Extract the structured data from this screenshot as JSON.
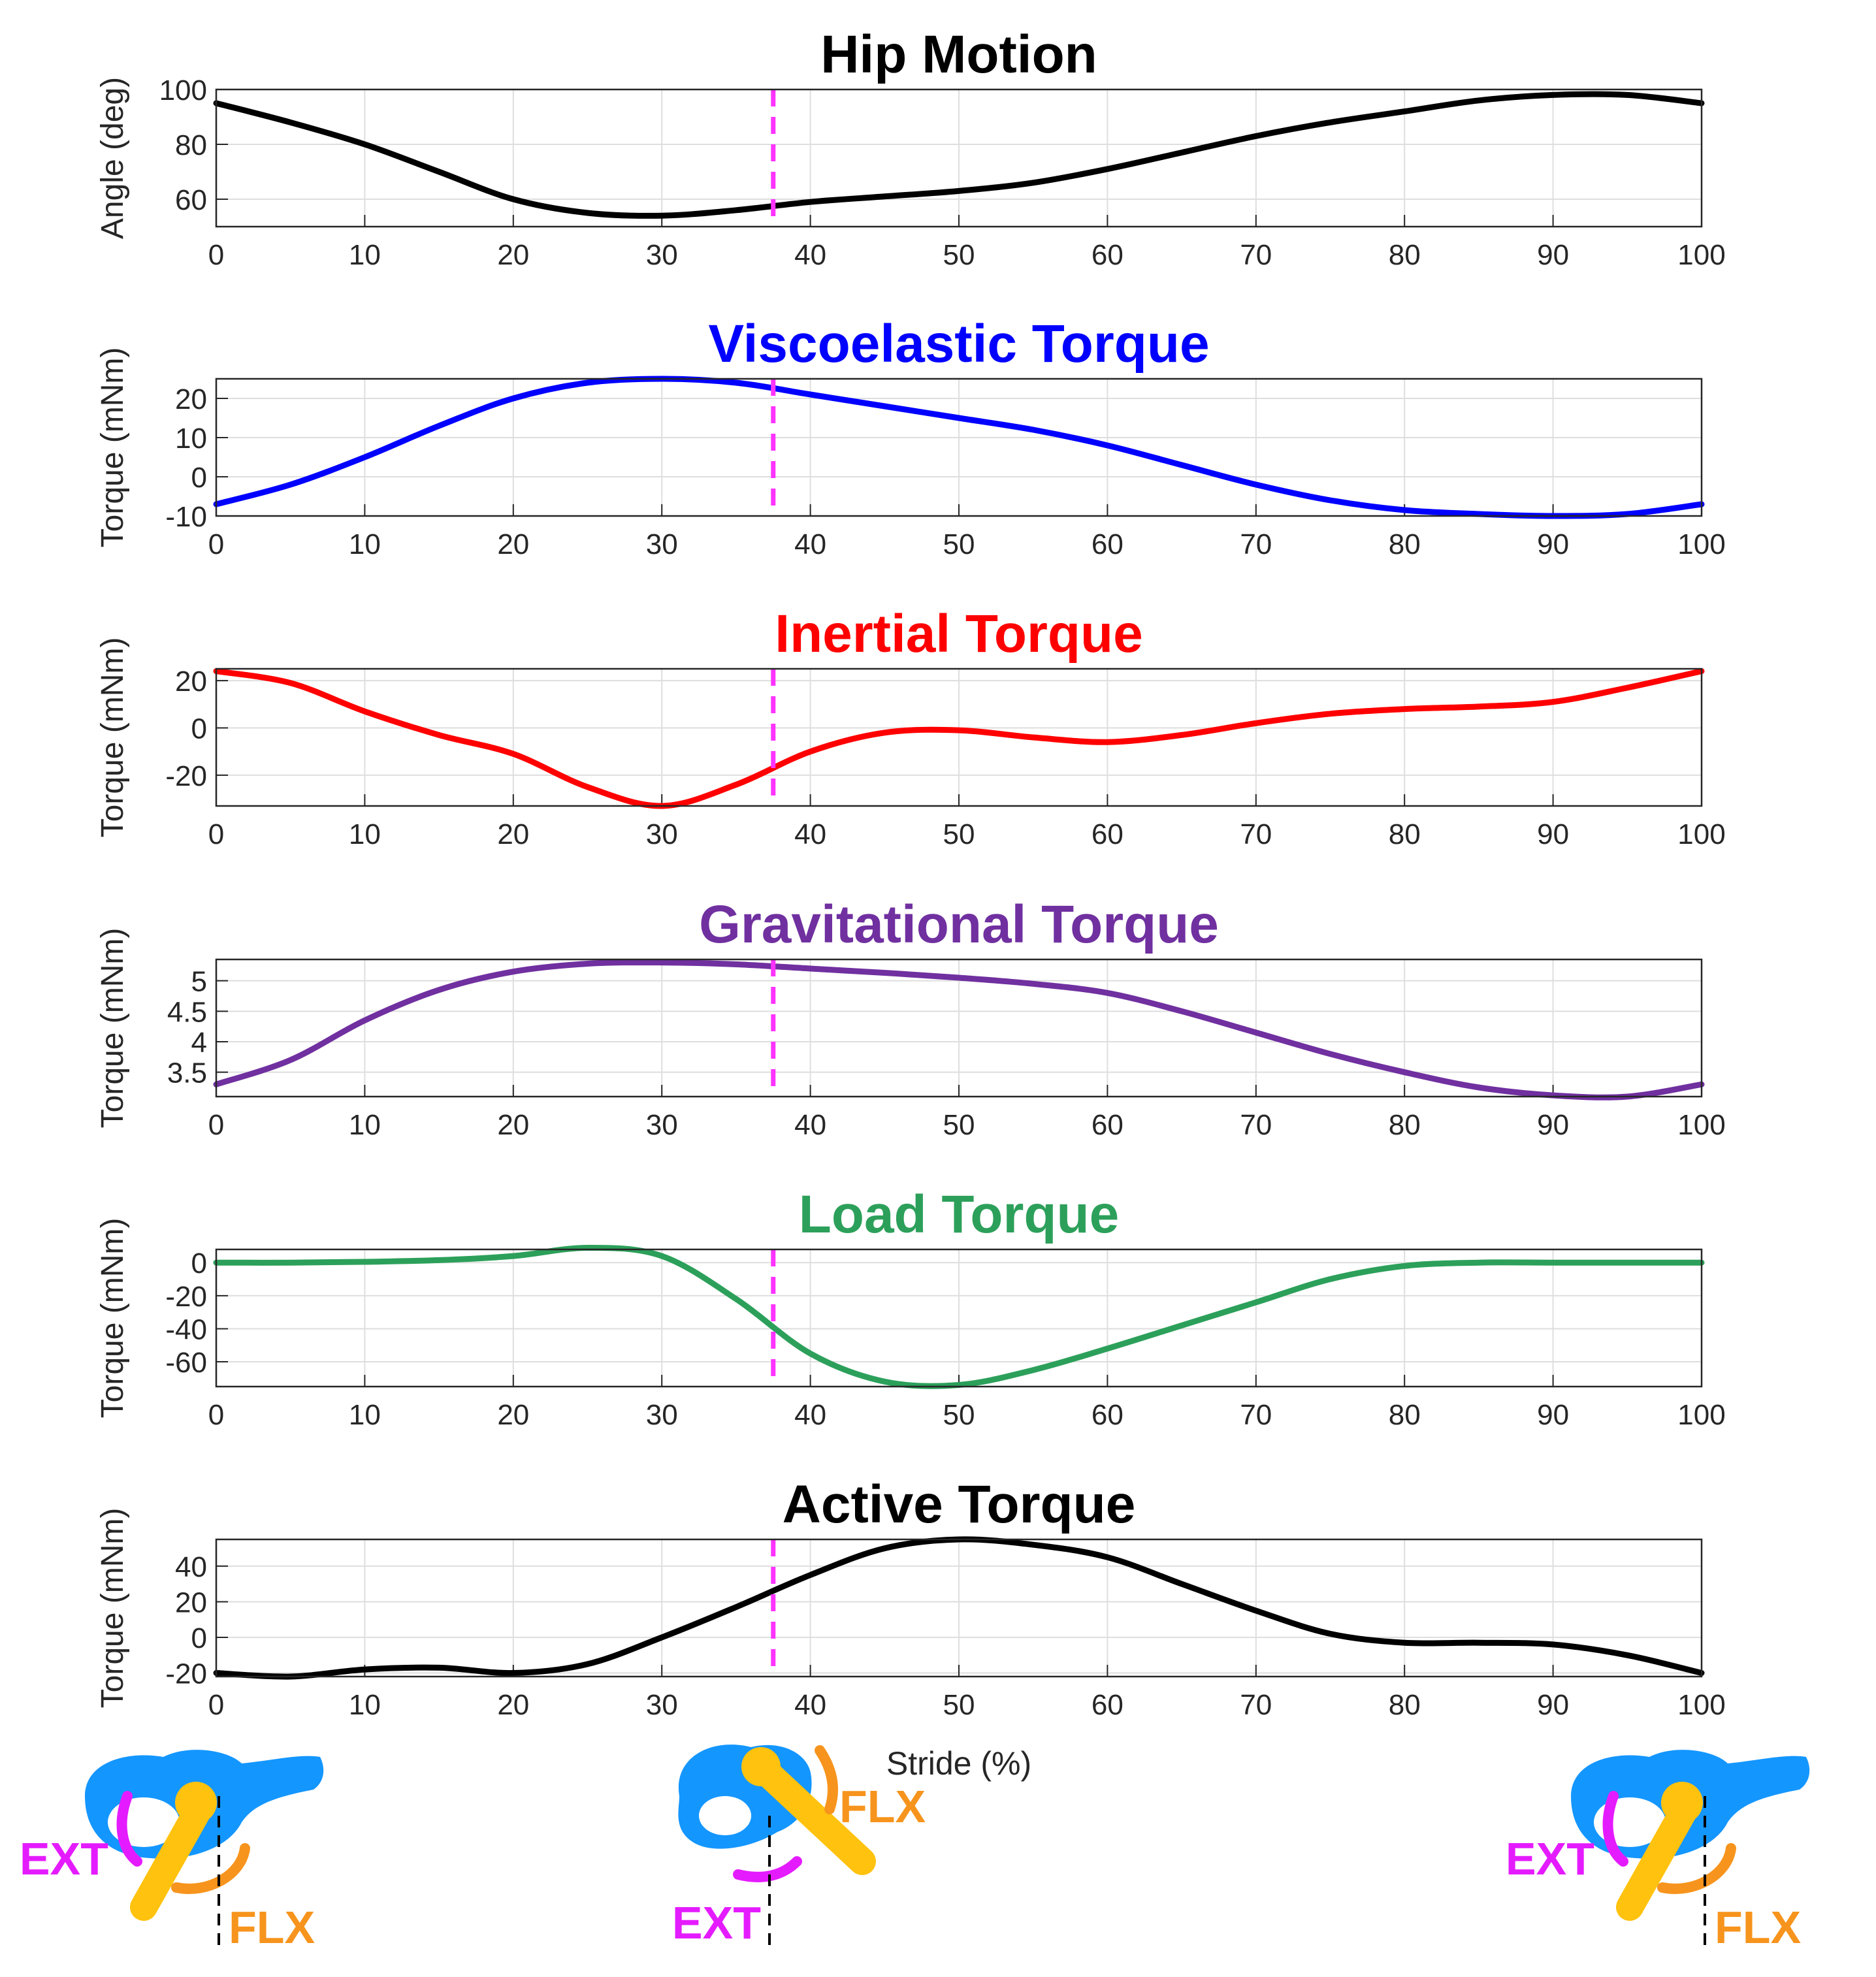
{
  "chart_data": [
    {
      "type": "line",
      "title": "Hip Motion",
      "title_color": "#000000",
      "color": "#000000",
      "ylabel": "Angle (deg)",
      "xlabel": "",
      "xlim": [
        0,
        100
      ],
      "ylim": [
        50,
        100
      ],
      "yticks": [
        60,
        80,
        100
      ],
      "xticks": [
        0,
        10,
        20,
        30,
        40,
        50,
        60,
        70,
        80,
        90,
        100
      ],
      "grid": true,
      "marker_x": 37.5,
      "x": [
        0,
        5,
        10,
        15,
        20,
        25,
        30,
        35,
        40,
        45,
        50,
        55,
        60,
        65,
        70,
        75,
        80,
        85,
        90,
        95,
        100
      ],
      "y": [
        95,
        88,
        80,
        70,
        60,
        55,
        54,
        56,
        59,
        61,
        63,
        66,
        71,
        77,
        83,
        88,
        92,
        96,
        98,
        98,
        95
      ]
    },
    {
      "type": "line",
      "title": "Viscoelastic Torque",
      "title_color": "#0000ff",
      "color": "#0000ff",
      "ylabel": "Torque (mNm)",
      "xlabel": "",
      "xlim": [
        0,
        100
      ],
      "ylim": [
        -10,
        25
      ],
      "yticks": [
        -10,
        0,
        10,
        20
      ],
      "xticks": [
        0,
        10,
        20,
        30,
        40,
        50,
        60,
        70,
        80,
        90,
        100
      ],
      "grid": true,
      "marker_x": 37.5,
      "x": [
        0,
        5,
        10,
        15,
        20,
        25,
        30,
        35,
        40,
        45,
        50,
        55,
        60,
        65,
        70,
        75,
        80,
        85,
        90,
        95,
        100
      ],
      "y": [
        -7,
        -2,
        5,
        13,
        20,
        24,
        25,
        24,
        21,
        18,
        15,
        12,
        8,
        3,
        -2,
        -6,
        -8.5,
        -9.5,
        -10,
        -9.5,
        -7
      ]
    },
    {
      "type": "line",
      "title": "Inertial Torque",
      "title_color": "#ff0000",
      "color": "#ff0000",
      "ylabel": "Torque (mNm)",
      "xlabel": "",
      "xlim": [
        0,
        100
      ],
      "ylim": [
        -33,
        25
      ],
      "yticks": [
        -20,
        0,
        20
      ],
      "xticks": [
        0,
        10,
        20,
        30,
        40,
        50,
        60,
        70,
        80,
        90,
        100
      ],
      "grid": true,
      "marker_x": 37.5,
      "x": [
        0,
        5,
        10,
        15,
        20,
        25,
        30,
        35,
        40,
        45,
        50,
        55,
        60,
        65,
        70,
        75,
        80,
        85,
        90,
        95,
        100
      ],
      "y": [
        24,
        19,
        7,
        -3,
        -11,
        -25,
        -33,
        -24,
        -10,
        -2,
        -1,
        -4,
        -6,
        -3,
        2,
        6,
        8,
        9,
        11,
        17,
        24
      ]
    },
    {
      "type": "line",
      "title": "Gravitational Torque",
      "title_color": "#7030a0",
      "color": "#7030a0",
      "ylabel": "Torque (mNm)",
      "xlabel": "",
      "xlim": [
        0,
        100
      ],
      "ylim": [
        3.1,
        5.35
      ],
      "yticks": [
        3.5,
        4,
        4.5,
        5
      ],
      "xticks": [
        0,
        10,
        20,
        30,
        40,
        50,
        60,
        70,
        80,
        90,
        100
      ],
      "grid": true,
      "marker_x": 37.5,
      "x": [
        0,
        5,
        10,
        15,
        20,
        25,
        30,
        35,
        40,
        45,
        50,
        55,
        60,
        65,
        70,
        75,
        80,
        85,
        90,
        95,
        100
      ],
      "y": [
        3.3,
        3.7,
        4.35,
        4.85,
        5.15,
        5.28,
        5.3,
        5.27,
        5.2,
        5.13,
        5.05,
        4.95,
        4.8,
        4.5,
        4.15,
        3.8,
        3.5,
        3.25,
        3.12,
        3.1,
        3.3
      ]
    },
    {
      "type": "line",
      "title": "Load Torque",
      "title_color": "#2ca05a",
      "color": "#2ca05a",
      "ylabel": "Torque (mNm)",
      "xlabel": "",
      "xlim": [
        0,
        100
      ],
      "ylim": [
        -75,
        8
      ],
      "yticks": [
        -60,
        -40,
        -20,
        0
      ],
      "xticks": [
        0,
        10,
        20,
        30,
        40,
        50,
        60,
        70,
        80,
        90,
        100
      ],
      "grid": true,
      "marker_x": 37.5,
      "x": [
        0,
        5,
        10,
        15,
        20,
        25,
        30,
        35,
        40,
        45,
        50,
        55,
        60,
        65,
        70,
        75,
        80,
        85,
        90,
        95,
        100
      ],
      "y": [
        0,
        0,
        0.5,
        1.5,
        4,
        9,
        4,
        -22,
        -55,
        -72,
        -74,
        -65,
        -52,
        -38,
        -24,
        -10,
        -2,
        0,
        0,
        0,
        0
      ]
    },
    {
      "type": "line",
      "title": "Active Torque",
      "title_color": "#000000",
      "color": "#000000",
      "ylabel": "Torque (mNm)",
      "xlabel": "Stride (%)",
      "xlim": [
        0,
        100
      ],
      "ylim": [
        -22,
        55
      ],
      "yticks": [
        -20,
        0,
        20,
        40
      ],
      "xticks": [
        0,
        10,
        20,
        30,
        40,
        50,
        60,
        70,
        80,
        90,
        100
      ],
      "grid": true,
      "marker_x": 37.5,
      "x": [
        0,
        5,
        10,
        15,
        20,
        25,
        30,
        35,
        40,
        45,
        50,
        55,
        60,
        65,
        70,
        75,
        80,
        85,
        90,
        95,
        100
      ],
      "y": [
        -20,
        -22,
        -18,
        -17,
        -20,
        -15,
        0,
        17,
        35,
        50,
        55,
        52,
        45,
        30,
        15,
        2,
        -3,
        -3,
        -4,
        -10,
        -20
      ]
    }
  ],
  "diagrams": [
    {
      "ext_label": "EXT",
      "flx_label": "FLX"
    },
    {
      "ext_label": "EXT",
      "flx_label": "FLX"
    },
    {
      "ext_label": "EXT",
      "flx_label": "FLX"
    }
  ],
  "colors": {
    "marker": "#ff33ff",
    "bone": "#1496ff",
    "femur": "#ffc20e",
    "ext": "#e51bff",
    "flx": "#f7941d"
  }
}
